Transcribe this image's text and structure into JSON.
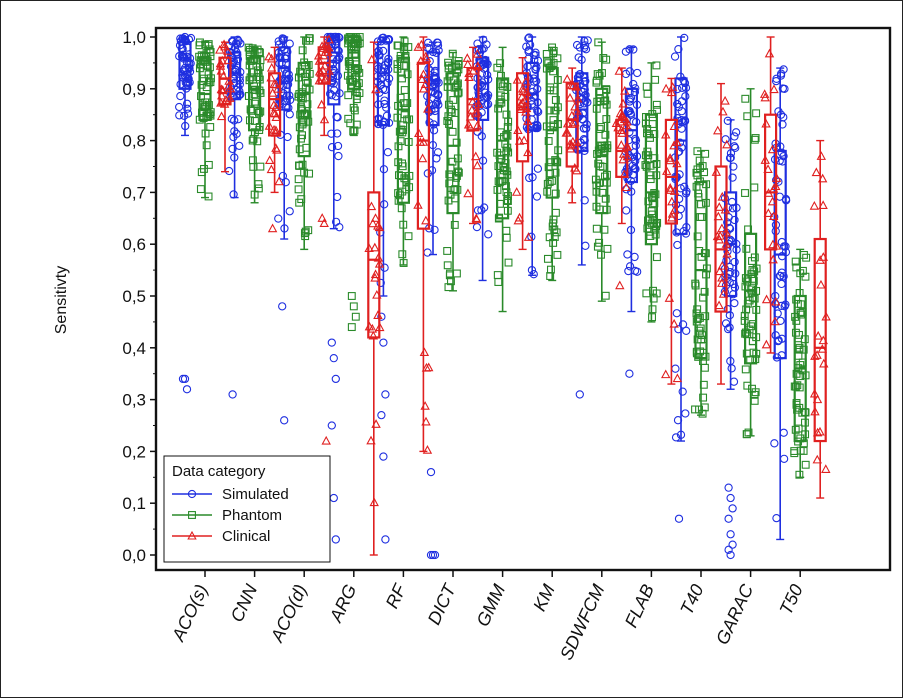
{
  "chart_data": {
    "type": "box",
    "ylabel": "Sensitivty",
    "xlabel": "",
    "ylim": [
      0.0,
      1.0
    ],
    "yticks": [
      "0,0",
      "0,1",
      "0,2",
      "0,3",
      "0,4",
      "0,5",
      "0,6",
      "0,7",
      "0,8",
      "0,9",
      "1,0"
    ],
    "categories": [
      "ACO(s)",
      "CNN",
      "ACO(d)",
      "ARG",
      "RF",
      "DICT",
      "GMM",
      "KM",
      "SDWFCM",
      "FLAB",
      "T40",
      "GARAC",
      "T50"
    ],
    "legend": {
      "title": "Data category",
      "placement": "bottom-left",
      "entries": [
        "Simulated",
        "Phantom",
        "Clinical"
      ]
    },
    "series": [
      {
        "name": "Simulated",
        "color": "#1f2fe0",
        "marker": "circle",
        "boxes": [
          {
            "whisker_low": 0.81,
            "q1": 0.9,
            "median": 0.96,
            "q3": 0.99,
            "whisker_high": 1.0,
            "outliers": [
              0.34,
              0.34,
              0.32
            ]
          },
          {
            "whisker_low": 0.69,
            "q1": 0.88,
            "median": 0.93,
            "q3": 0.97,
            "whisker_high": 1.0,
            "outliers": [
              0.31
            ]
          },
          {
            "whisker_low": 0.61,
            "q1": 0.86,
            "median": 0.94,
            "q3": 0.98,
            "whisker_high": 1.0,
            "outliers": [
              0.48,
              0.26
            ]
          },
          {
            "whisker_low": 0.63,
            "q1": 0.87,
            "median": 0.97,
            "q3": 1.0,
            "whisker_high": 1.0,
            "outliers": [
              0.41,
              0.38,
              0.34,
              0.25,
              0.11,
              0.03
            ]
          },
          {
            "whisker_low": 0.5,
            "q1": 0.83,
            "median": 0.93,
            "q3": 0.99,
            "whisker_high": 1.0,
            "outliers": [
              0.46,
              0.41,
              0.31,
              0.27,
              0.19,
              0.03
            ]
          },
          {
            "whisker_low": 0.58,
            "q1": 0.83,
            "median": 0.91,
            "q3": 0.97,
            "whisker_high": 0.99,
            "outliers": [
              0.16,
              0.0,
              0.0,
              0.0
            ]
          },
          {
            "whisker_low": 0.53,
            "q1": 0.84,
            "median": 0.91,
            "q3": 0.96,
            "whisker_high": 1.0,
            "outliers": []
          },
          {
            "whisker_low": 0.54,
            "q1": 0.82,
            "median": 0.89,
            "q3": 0.95,
            "whisker_high": 1.0,
            "outliers": []
          },
          {
            "whisker_low": 0.56,
            "q1": 0.78,
            "median": 0.86,
            "q3": 0.93,
            "whisker_high": 1.0,
            "outliers": [
              0.31
            ]
          },
          {
            "whisker_low": 0.47,
            "q1": 0.72,
            "median": 0.82,
            "q3": 0.9,
            "whisker_high": 0.98,
            "outliers": [
              0.35
            ]
          },
          {
            "whisker_low": 0.22,
            "q1": 0.62,
            "median": 0.8,
            "q3": 0.92,
            "whisker_high": 1.0,
            "outliers": [
              0.07
            ]
          },
          {
            "whisker_low": 0.32,
            "q1": 0.5,
            "median": 0.6,
            "q3": 0.7,
            "whisker_high": 0.84,
            "outliers": [
              0.13,
              0.11,
              0.09,
              0.07,
              0.04,
              0.02,
              0.01,
              0.0
            ]
          },
          {
            "whisker_low": 0.03,
            "q1": 0.38,
            "median": 0.58,
            "q3": 0.78,
            "whisker_high": 0.94,
            "outliers": []
          }
        ]
      },
      {
        "name": "Phantom",
        "color": "#2a8a2a",
        "marker": "square",
        "boxes": [
          {
            "whisker_low": 0.69,
            "q1": 0.84,
            "median": 0.89,
            "q3": 0.96,
            "whisker_high": 0.99,
            "outliers": []
          },
          {
            "whisker_low": 0.68,
            "q1": 0.82,
            "median": 0.9,
            "q3": 0.96,
            "whisker_high": 0.98,
            "outliers": []
          },
          {
            "whisker_low": 0.59,
            "q1": 0.77,
            "median": 0.89,
            "q3": 0.95,
            "whisker_high": 1.0,
            "outliers": []
          },
          {
            "whisker_low": 0.81,
            "q1": 0.9,
            "median": 0.97,
            "q3": 1.0,
            "whisker_high": 1.0,
            "outliers": [
              0.5,
              0.48,
              0.46,
              0.44
            ]
          },
          {
            "whisker_low": 0.56,
            "q1": 0.68,
            "median": 0.86,
            "q3": 0.96,
            "whisker_high": 1.0,
            "outliers": []
          },
          {
            "whisker_low": 0.51,
            "q1": 0.66,
            "median": 0.79,
            "q3": 0.93,
            "whisker_high": 0.97,
            "outliers": []
          },
          {
            "whisker_low": 0.47,
            "q1": 0.65,
            "median": 0.8,
            "q3": 0.92,
            "whisker_high": 0.98,
            "outliers": []
          },
          {
            "whisker_low": 0.53,
            "q1": 0.69,
            "median": 0.82,
            "q3": 0.94,
            "whisker_high": 0.98,
            "outliers": []
          },
          {
            "whisker_low": 0.49,
            "q1": 0.66,
            "median": 0.77,
            "q3": 0.9,
            "whisker_high": 0.99,
            "outliers": []
          },
          {
            "whisker_low": 0.45,
            "q1": 0.6,
            "median": 0.7,
            "q3": 0.85,
            "whisker_high": 0.95,
            "outliers": []
          },
          {
            "whisker_low": 0.27,
            "q1": 0.38,
            "median": 0.55,
            "q3": 0.72,
            "whisker_high": 0.78,
            "outliers": []
          },
          {
            "whisker_low": 0.23,
            "q1": 0.37,
            "median": 0.51,
            "q3": 0.62,
            "whisker_high": 0.9,
            "outliers": []
          },
          {
            "whisker_low": 0.15,
            "q1": 0.22,
            "median": 0.36,
            "q3": 0.5,
            "whisker_high": 0.59,
            "outliers": []
          }
        ]
      },
      {
        "name": "Clinical",
        "color": "#e02020",
        "marker": "triangle",
        "boxes": [
          {
            "whisker_low": 0.74,
            "q1": 0.87,
            "median": 0.92,
            "q3": 0.96,
            "whisker_high": 0.99,
            "outliers": []
          },
          {
            "whisker_low": 0.7,
            "q1": 0.81,
            "median": 0.88,
            "q3": 0.93,
            "whisker_high": 0.98,
            "outliers": [
              0.63
            ]
          },
          {
            "whisker_low": 0.81,
            "q1": 0.91,
            "median": 0.95,
            "q3": 0.98,
            "whisker_high": 1.0,
            "outliers": [
              0.65,
              0.64,
              0.22
            ]
          },
          {
            "whisker_low": 0.0,
            "q1": 0.42,
            "median": 0.57,
            "q3": 0.7,
            "whisker_high": 0.99,
            "outliers": []
          },
          {
            "whisker_low": 0.2,
            "q1": 0.63,
            "median": 0.8,
            "q3": 0.95,
            "whisker_high": 1.0,
            "outliers": []
          },
          {
            "whisker_low": 0.64,
            "q1": 0.82,
            "median": 0.88,
            "q3": 0.94,
            "whisker_high": 0.98,
            "outliers": []
          },
          {
            "whisker_low": 0.59,
            "q1": 0.76,
            "median": 0.86,
            "q3": 0.93,
            "whisker_high": 0.96,
            "outliers": []
          },
          {
            "whisker_low": 0.68,
            "q1": 0.75,
            "median": 0.84,
            "q3": 0.91,
            "whisker_high": 0.94,
            "outliers": []
          },
          {
            "whisker_low": 0.64,
            "q1": 0.73,
            "median": 0.78,
            "q3": 0.84,
            "whisker_high": 0.94,
            "outliers": [
              0.52
            ]
          },
          {
            "whisker_low": 0.33,
            "q1": 0.64,
            "median": 0.73,
            "q3": 0.84,
            "whisker_high": 0.92,
            "outliers": []
          },
          {
            "whisker_low": 0.33,
            "q1": 0.47,
            "median": 0.59,
            "q3": 0.75,
            "whisker_high": 0.91,
            "outliers": []
          },
          {
            "whisker_low": 0.39,
            "q1": 0.59,
            "median": 0.7,
            "q3": 0.85,
            "whisker_high": 1.0,
            "outliers": []
          },
          {
            "whisker_low": 0.11,
            "q1": 0.22,
            "median": 0.4,
            "q3": 0.61,
            "whisker_high": 0.8,
            "outliers": []
          }
        ]
      }
    ]
  }
}
